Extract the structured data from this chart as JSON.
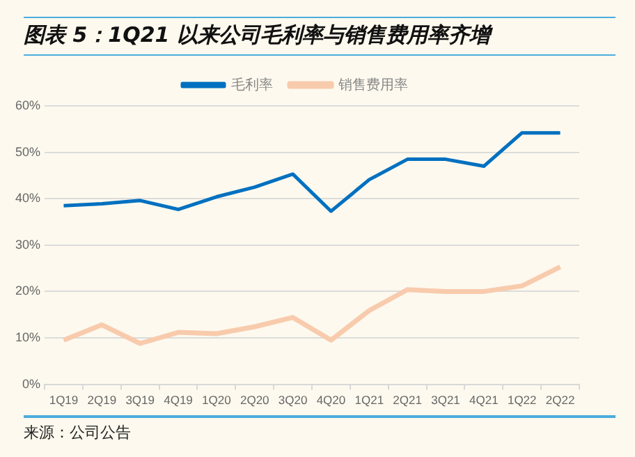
{
  "chart_data": {
    "type": "line",
    "title": "图表 5：1Q21 以来公司毛利率与销售费用率齐增",
    "categories": [
      "1Q19",
      "2Q19",
      "3Q19",
      "4Q19",
      "1Q20",
      "2Q20",
      "3Q20",
      "4Q20",
      "1Q21",
      "2Q21",
      "3Q21",
      "4Q21",
      "1Q22",
      "2Q22"
    ],
    "series": [
      {
        "name": "毛利率",
        "color": "#0070c0",
        "values": [
          38.5,
          38.9,
          39.6,
          37.7,
          40.4,
          42.5,
          45.3,
          37.3,
          44.1,
          48.5,
          48.5,
          47.0,
          54.2,
          54.2
        ]
      },
      {
        "name": "销售费用率",
        "color": "#f8cbad",
        "values": [
          9.5,
          12.8,
          8.8,
          11.2,
          10.9,
          12.4,
          14.4,
          9.5,
          15.9,
          20.4,
          20.0,
          20.0,
          21.2,
          25.3
        ]
      }
    ],
    "ylim": [
      0,
      60
    ],
    "yticks": [
      {
        "value": 0,
        "label": "0%"
      },
      {
        "value": 10,
        "label": "10%"
      },
      {
        "value": 20,
        "label": "20%"
      },
      {
        "value": 30,
        "label": "30%"
      },
      {
        "value": 40,
        "label": "40%"
      },
      {
        "value": 50,
        "label": "50%"
      },
      {
        "value": 60,
        "label": "60%"
      }
    ],
    "grid": "y",
    "legend": "top",
    "marker": "none",
    "annotations": [
      "来源：公司公告"
    ]
  }
}
